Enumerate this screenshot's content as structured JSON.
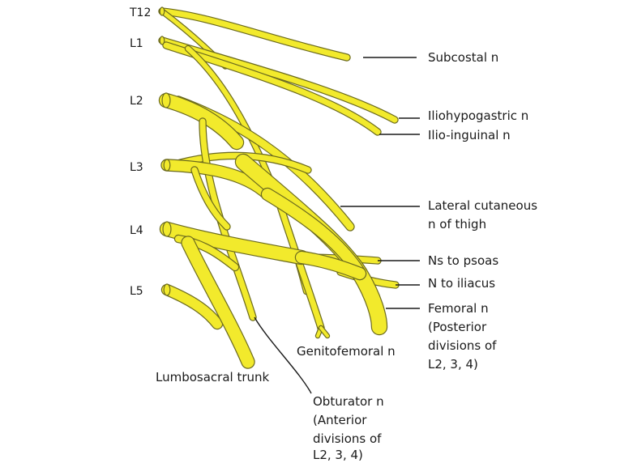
{
  "colors": {
    "nerve_fill": "#F2EA2C",
    "nerve_outline": "#6B6A1E",
    "leader_line": "#1a1a1a",
    "text": "#1a1a1a",
    "background": "#ffffff"
  },
  "levels": {
    "t12": "T12",
    "l1": "L1",
    "l2": "L2",
    "l3": "L3",
    "l4": "L4",
    "l5": "L5"
  },
  "labels": {
    "subcostal": "Subcostal n",
    "iliohypogastric": "Iliohypogastric n",
    "ilioinguinal": "Ilio-inguinal n",
    "lateral_cutaneous_1": "Lateral cutaneous",
    "lateral_cutaneous_2": "n of thigh",
    "ns_to_psoas": "Ns to psoas",
    "n_to_iliacus": "N to iliacus",
    "femoral_1": "Femoral n",
    "femoral_2": "(Posterior",
    "femoral_3": "divisions of",
    "femoral_4": "L2, 3, 4)",
    "genitofemoral": "Genitofemoral n",
    "lumbosacral": "Lumbosacral trunk",
    "obturator_1": "Obturator n",
    "obturator_2": "(Anterior",
    "obturator_3": "divisions of",
    "obturator_4": "L2, 3, 4)"
  }
}
